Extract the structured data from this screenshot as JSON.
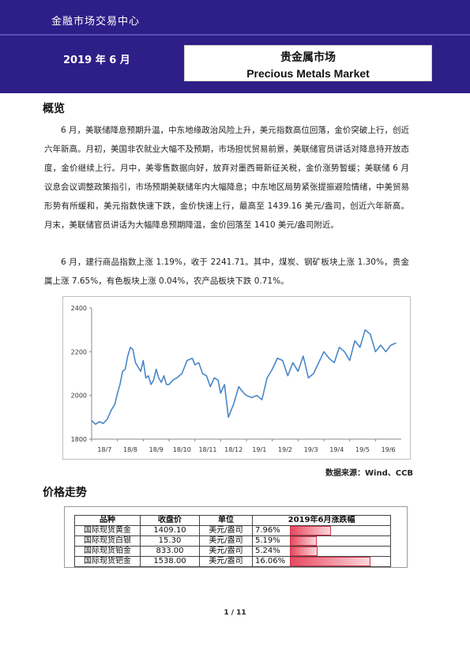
{
  "header": {
    "brand": "金融市场交易中心",
    "date": "2019 年 6 月",
    "title_cn": "贵金属市场",
    "title_en": "Precious Metals Market"
  },
  "overview": {
    "heading": "概览",
    "paragraph1": "6 月，美联储降息预期升温，中东地缘政治风险上升，美元指数高位回落，金价突破上行，创近六年新高。月初，美国非农就业大幅不及预期，市场担忧贸易前景，美联储官员讲话对降息持开放态度，金价继续上行。月中，美零售数据向好，放弃对墨西哥新征关税，金价涨势暂缓；美联储 6 月议息会议调整政策指引，市场预期美联储年内大幅降息；中东地区局势紧张提振避险情绪，中美贸易形势有所缓和，美元指数快速下跌，金价快速上行，最高至 1439.16 美元/盎司，创近六年新高。月末，美联储官员讲话为大幅降息预期降温，金价回落至 1410 美元/盎司附近。",
    "paragraph2": "6 月，建行商品指数上涨 1.19%，收于 2241.71。其中，煤炭、钢矿板块上涨 1.30%，贵金属上涨 7.65%，有色板块上涨 0.04%，农产品板块下跌 0.71%。"
  },
  "chart_data": {
    "type": "line",
    "title": "",
    "xlabel": "",
    "ylabel": "",
    "ylim": [
      1800,
      2400
    ],
    "yticks": [
      1800,
      2000,
      2200,
      2400
    ],
    "xtick_labels": [
      "18/7",
      "18/8",
      "18/9",
      "18/10",
      "18/11",
      "18/12",
      "19/1",
      "19/2",
      "19/3",
      "19/4",
      "19/5",
      "19/6"
    ],
    "color": "#4a86c8",
    "grid": false,
    "series": [
      {
        "x": [
          0,
          0.15,
          0.3,
          0.45,
          0.6,
          0.75,
          0.9,
          1.0,
          1.1,
          1.2,
          1.3,
          1.4,
          1.5,
          1.6,
          1.7,
          1.8,
          1.9,
          2.0,
          2.1,
          2.2,
          2.3,
          2.4,
          2.5,
          2.6,
          2.7,
          2.8,
          2.9,
          3.0,
          3.15,
          3.3,
          3.5,
          3.7,
          3.9,
          4.0,
          4.15,
          4.3,
          4.45,
          4.6,
          4.75,
          4.9,
          5.0,
          5.15,
          5.3,
          5.5,
          5.7,
          5.9,
          6.0,
          6.2,
          6.4,
          6.6,
          6.8,
          7.0,
          7.2,
          7.4,
          7.6,
          7.8,
          8.0,
          8.2,
          8.4,
          8.6,
          8.8,
          9.0,
          9.2,
          9.4,
          9.6,
          9.8,
          10.0,
          10.2,
          10.4,
          10.6,
          10.8,
          11.0,
          11.2,
          11.4,
          11.6,
          11.8
        ],
        "y": [
          1885,
          1868,
          1880,
          1872,
          1890,
          1930,
          1960,
          2010,
          2050,
          2110,
          2120,
          2180,
          2220,
          2210,
          2150,
          2130,
          2110,
          2160,
          2080,
          2090,
          2050,
          2070,
          2120,
          2080,
          2060,
          2090,
          2050,
          2050,
          2070,
          2080,
          2100,
          2160,
          2170,
          2140,
          2150,
          2100,
          2090,
          2040,
          2080,
          2070,
          2010,
          2050,
          1900,
          1960,
          2040,
          2010,
          2000,
          1990,
          2000,
          1980,
          2080,
          2120,
          2170,
          2160,
          2090,
          2150,
          2110,
          2180,
          2080,
          2100,
          2150,
          2200,
          2170,
          2150,
          2220,
          2200,
          2160,
          2250,
          2220,
          2300,
          2280,
          2200,
          2230,
          2200,
          2230,
          2240
        ]
      }
    ]
  },
  "source_note": "数据来源：Wind、CCB",
  "price_section": {
    "heading": "价格走势",
    "headers": [
      "品种",
      "收盘价",
      "单位",
      "2019年6月涨跌幅"
    ],
    "rows": [
      {
        "name": "国际现货黄金",
        "price": "1409.10",
        "unit": "美元/盎司",
        "change": "7.96%",
        "change_value": 7.96
      },
      {
        "name": "国际现货白银",
        "price": "15.30",
        "unit": "美元/盎司",
        "change": "5.19%",
        "change_value": 5.19
      },
      {
        "name": "国际现货铂金",
        "price": "833.00",
        "unit": "美元/盎司",
        "change": "5.24%",
        "change_value": 5.24
      },
      {
        "name": "国际现货钯金",
        "price": "1538.00",
        "unit": "美元/盎司",
        "change": "16.06%",
        "change_value": 16.06
      }
    ],
    "bar_color": "#e8495f"
  },
  "footer": {
    "page": "1 / 11"
  }
}
